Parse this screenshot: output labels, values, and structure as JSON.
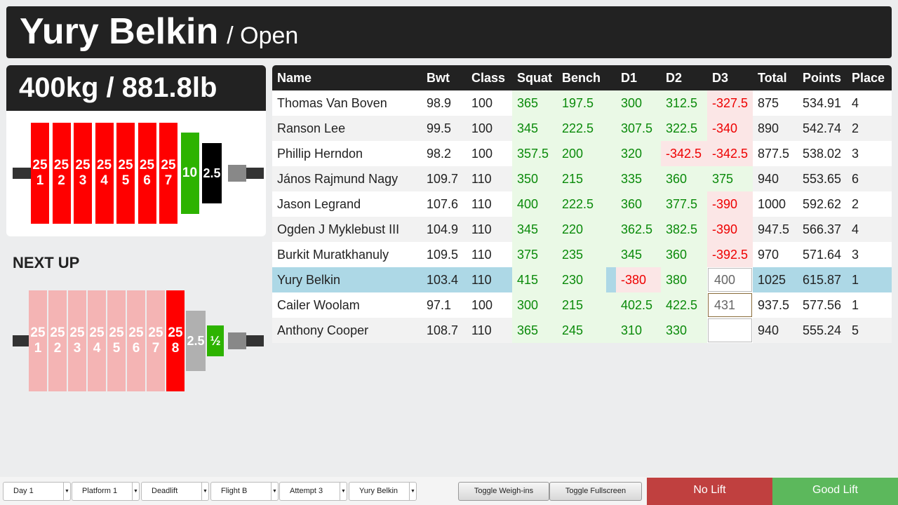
{
  "header": {
    "lifter_name": "Yury Belkin",
    "division": "/ Open"
  },
  "bar": {
    "weight_label": "400kg / 881.8lb",
    "plates": [
      {
        "weight": "25",
        "index": "1",
        "color": "#ff0000"
      },
      {
        "weight": "25",
        "index": "2",
        "color": "#ff0000"
      },
      {
        "weight": "25",
        "index": "3",
        "color": "#ff0000"
      },
      {
        "weight": "25",
        "index": "4",
        "color": "#ff0000"
      },
      {
        "weight": "25",
        "index": "5",
        "color": "#ff0000"
      },
      {
        "weight": "25",
        "index": "6",
        "color": "#ff0000"
      },
      {
        "weight": "25",
        "index": "7",
        "color": "#ff0000"
      },
      {
        "weight": "10",
        "color": "#2db300"
      },
      {
        "weight": "2.5",
        "color": "#000000"
      }
    ]
  },
  "next_up": {
    "title": "NEXT UP",
    "plates": [
      {
        "weight": "25",
        "index": "1",
        "color": "#f4b4b4"
      },
      {
        "weight": "25",
        "index": "2",
        "color": "#f4b4b4"
      },
      {
        "weight": "25",
        "index": "3",
        "color": "#f4b4b4"
      },
      {
        "weight": "25",
        "index": "4",
        "color": "#f4b4b4"
      },
      {
        "weight": "25",
        "index": "5",
        "color": "#f4b4b4"
      },
      {
        "weight": "25",
        "index": "6",
        "color": "#f4b4b4"
      },
      {
        "weight": "25",
        "index": "7",
        "color": "#f4b4b4"
      },
      {
        "weight": "25",
        "index": "8",
        "color": "#ff0000"
      },
      {
        "weight": "2.5",
        "color": "#b0b0b0"
      },
      {
        "weight": "½",
        "color": "#2db300"
      }
    ]
  },
  "table": {
    "headers": [
      "Name",
      "Bwt",
      "Class",
      "Squat",
      "Bench",
      "D1",
      "D2",
      "D3",
      "Total",
      "Points",
      "Place"
    ],
    "rows": [
      {
        "name": "Thomas Van Boven",
        "bwt": "98.9",
        "class": "100",
        "squat": "365",
        "bench": "197.5",
        "d1": "300",
        "d2": "312.5",
        "d3": "-327.5",
        "total": "875",
        "points": "534.91",
        "place": "4"
      },
      {
        "name": "Ranson Lee",
        "bwt": "99.5",
        "class": "100",
        "squat": "345",
        "bench": "222.5",
        "d1": "307.5",
        "d2": "322.5",
        "d3": "-340",
        "total": "890",
        "points": "542.74",
        "place": "2"
      },
      {
        "name": "Phillip Herndon",
        "bwt": "98.2",
        "class": "100",
        "squat": "357.5",
        "bench": "200",
        "d1": "320",
        "d2": "-342.5",
        "d3": "-342.5",
        "total": "877.5",
        "points": "538.02",
        "place": "3"
      },
      {
        "name": "János Rajmund Nagy",
        "bwt": "109.7",
        "class": "110",
        "squat": "350",
        "bench": "215",
        "d1": "335",
        "d2": "360",
        "d3": "375",
        "total": "940",
        "points": "553.65",
        "place": "6"
      },
      {
        "name": "Jason Legrand",
        "bwt": "107.6",
        "class": "110",
        "squat": "400",
        "bench": "222.5",
        "d1": "360",
        "d2": "377.5",
        "d3": "-390",
        "total": "1000",
        "points": "592.62",
        "place": "2"
      },
      {
        "name": "Ogden J Myklebust III",
        "bwt": "104.9",
        "class": "110",
        "squat": "345",
        "bench": "220",
        "d1": "362.5",
        "d2": "382.5",
        "d3": "-390",
        "total": "947.5",
        "points": "566.37",
        "place": "4"
      },
      {
        "name": "Burkit Muratkhanuly",
        "bwt": "109.5",
        "class": "110",
        "squat": "375",
        "bench": "235",
        "d1": "345",
        "d2": "360",
        "d3": "-392.5",
        "total": "970",
        "points": "571.64",
        "place": "3"
      },
      {
        "name": "Yury Belkin",
        "bwt": "103.4",
        "class": "110",
        "squat": "415",
        "bench": "230",
        "d1": "-380",
        "d2": "380",
        "d3": "400",
        "total": "1025",
        "points": "615.87",
        "place": "1"
      },
      {
        "name": "Cailer Woolam",
        "bwt": "97.1",
        "class": "100",
        "squat": "300",
        "bench": "215",
        "d1": "402.5",
        "d2": "422.5",
        "d3": "431",
        "total": "937.5",
        "points": "577.56",
        "place": "1"
      },
      {
        "name": "Anthony Cooper",
        "bwt": "108.7",
        "class": "110",
        "squat": "365",
        "bench": "245",
        "d1": "310",
        "d2": "330",
        "d3": "",
        "total": "940",
        "points": "555.24",
        "place": "5"
      }
    ]
  },
  "footer": {
    "selects": [
      "Day 1",
      "Platform 1",
      "Deadlift",
      "Flight B",
      "Attempt 3",
      "Yury Belkin"
    ],
    "buttons": [
      "Toggle Weigh-ins",
      "Toggle Fullscreen"
    ],
    "no_lift": "No Lift",
    "good_lift": "Good Lift"
  },
  "colors": {
    "good": "#0a8a0a",
    "bad": "#ee0000",
    "current_row": "#add8e6",
    "no_lift": "#c0403f",
    "good_lift": "#5cb85c"
  }
}
